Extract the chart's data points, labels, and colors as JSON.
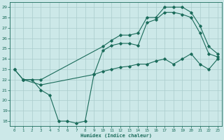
{
  "xlabel": "Humidex (Indice chaleur)",
  "bg_color": "#cce8e8",
  "line_color": "#1a6b5a",
  "grid_color": "#aacccc",
  "xlim": [
    -0.5,
    23.5
  ],
  "ylim": [
    17.5,
    29.5
  ],
  "xticks": [
    0,
    1,
    2,
    3,
    4,
    5,
    6,
    7,
    8,
    9,
    10,
    11,
    12,
    13,
    14,
    15,
    16,
    17,
    18,
    19,
    20,
    21,
    22,
    23
  ],
  "yticks": [
    18,
    19,
    20,
    21,
    22,
    23,
    24,
    25,
    26,
    27,
    28,
    29
  ],
  "curve1_x": [
    0,
    1,
    3,
    10,
    11,
    12,
    13,
    14,
    15,
    16,
    17,
    18,
    19,
    20,
    21,
    22,
    23
  ],
  "curve1_y": [
    23.0,
    22.0,
    22.0,
    25.2,
    25.8,
    26.3,
    26.3,
    26.5,
    28.0,
    28.0,
    29.0,
    29.0,
    29.0,
    28.5,
    27.2,
    25.2,
    24.5
  ],
  "curve2_x": [
    0,
    1,
    3,
    9,
    10,
    11,
    12,
    13,
    14,
    15,
    16,
    17,
    18,
    19,
    20,
    21,
    22,
    23
  ],
  "curve2_y": [
    23.0,
    22.0,
    21.5,
    22.5,
    24.8,
    25.3,
    25.5,
    25.5,
    25.3,
    27.5,
    27.8,
    28.5,
    28.5,
    28.3,
    28.0,
    26.5,
    24.5,
    24.2
  ],
  "curve3_x": [
    1,
    2,
    3,
    4,
    5,
    6,
    7,
    8,
    9,
    10,
    11,
    12,
    13,
    14,
    15,
    16,
    17,
    18,
    19,
    20,
    21,
    22,
    23
  ],
  "curve3_y": [
    22.0,
    22.0,
    21.0,
    20.5,
    18.0,
    18.0,
    17.8,
    18.0,
    22.5,
    22.8,
    23.0,
    23.2,
    23.3,
    23.5,
    23.5,
    23.8,
    24.0,
    23.5,
    24.0,
    24.5,
    23.5,
    23.0,
    24.0
  ]
}
